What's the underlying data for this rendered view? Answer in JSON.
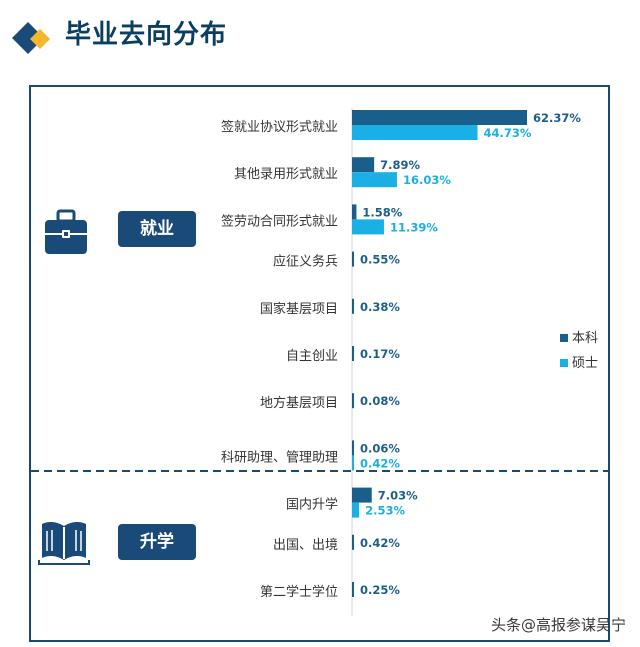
{
  "title": "毕业去向分布",
  "sections": {
    "employment": "就业",
    "further_study": "升学"
  },
  "watermark": "头条@高报参谋吴宁",
  "colors": {
    "title": "#0b3e63",
    "frame": "#174b73",
    "undergrad": "#1a5f8c",
    "master": "#1ab0e6",
    "section_bg": "#1a4a78",
    "logo_dark": "#1a4a78",
    "logo_gold": "#f5b72b"
  },
  "chart_data": {
    "type": "bar",
    "orientation": "horizontal",
    "categories": [
      "签就业协议形式就业",
      "其他录用形式就业",
      "签劳动合同形式就业",
      "应征义务兵",
      "国家基层项目",
      "自主创业",
      "地方基层项目",
      "科研助理、管理助理",
      "国内升学",
      "出国、出境",
      "第二学士学位"
    ],
    "value_unit": "%",
    "series": [
      {
        "name": "本科",
        "values": [
          62.37,
          7.89,
          1.58,
          0.55,
          0.38,
          0.17,
          0.08,
          0.06,
          7.03,
          0.42,
          0.25
        ],
        "labels": [
          "62.37%",
          "7.89%",
          "1.58%",
          "0.55%",
          "0.38%",
          "0.17%",
          "0.08%",
          "0.06%",
          "7.03%",
          "0.42%",
          "0.25%"
        ]
      },
      {
        "name": "硕士",
        "values": [
          44.73,
          16.03,
          11.39,
          null,
          null,
          null,
          null,
          0.42,
          2.53,
          null,
          null
        ],
        "labels": [
          "44.73%",
          "16.03%",
          "11.39%",
          "",
          "",
          "",
          "",
          "0.42%",
          "2.53%",
          "",
          ""
        ]
      }
    ],
    "xlim": [
      0,
      65
    ],
    "legend": {
      "placement": "right"
    }
  }
}
